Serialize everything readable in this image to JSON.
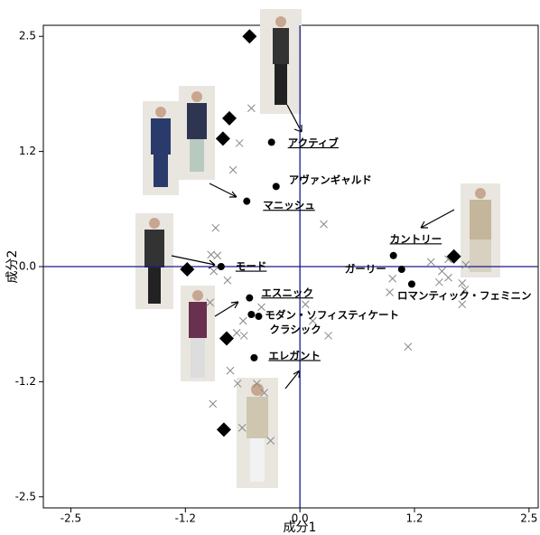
{
  "chart_data": {
    "type": "scatter",
    "x_label": "成分1",
    "y_label": "成分2",
    "xlim": [
      -2.8,
      2.6
    ],
    "ylim": [
      -2.62,
      2.62
    ],
    "xticks": [
      -2.5,
      {
        "value": -1.25,
        "label": "-1.2"
      },
      {
        "value": 0,
        "label": "0.0"
      },
      {
        "value": 1.25,
        "label": "1.2"
      },
      2.5
    ],
    "yticks": [
      2.5,
      {
        "value": 1.25,
        "label": "1.2"
      },
      {
        "value": 0,
        "label": "0.0"
      },
      {
        "value": -1.25,
        "label": "-1.2"
      },
      -2.5
    ],
    "axis_line_color": "#1a1a8c",
    "series": [
      {
        "marker": "x",
        "color": "#888888",
        "x": [
          -0.53,
          -0.66,
          -0.73,
          0.26,
          -0.92,
          -0.97,
          -0.9,
          -0.94,
          -0.79,
          -0.98,
          -0.42,
          -0.62,
          -0.69,
          -0.61,
          0.31,
          0.06,
          0.14,
          -0.76,
          -0.47,
          -0.68,
          -0.95,
          -0.39,
          -0.63,
          -0.32,
          1.18,
          1.01,
          0.98,
          1.43,
          1.55,
          1.62,
          1.52,
          1.77,
          1.8,
          1.77,
          1.62,
          1.81
        ],
        "values": [
          1.72,
          1.34,
          1.05,
          0.46,
          0.42,
          0.13,
          0.12,
          -0.05,
          -0.15,
          -0.39,
          -0.44,
          -0.59,
          -0.72,
          -0.75,
          -0.75,
          -0.41,
          -0.59,
          -1.13,
          -1.27,
          -1.27,
          -1.49,
          -1.37,
          -1.75,
          -1.89,
          -0.87,
          -0.13,
          -0.28,
          0.05,
          -0.05,
          -0.12,
          -0.17,
          -0.18,
          -0.25,
          -0.41,
          0.08,
          0.02
        ]
      },
      {
        "marker": "diamond",
        "color": "#000000",
        "x": [
          -0.55,
          -0.77,
          -0.84,
          -1.23,
          -0.8,
          -0.83,
          1.68
        ],
        "values": [
          2.5,
          1.61,
          1.39,
          -0.03,
          -0.78,
          -1.77,
          0.11
        ]
      },
      {
        "marker": "circle",
        "color": "#000000",
        "x": [
          -0.31,
          -0.26,
          -0.58,
          -0.86,
          1.02,
          1.11,
          1.22,
          -0.55,
          -0.53,
          -0.45,
          -0.5
        ],
        "values": [
          1.35,
          0.87,
          0.71,
          0,
          0.12,
          -0.03,
          -0.19,
          -0.34,
          -0.52,
          -0.54,
          -0.99
        ],
        "labels": [
          "アクティブ",
          "アヴァンギャルド",
          "マニッシュ",
          "モード",
          "カントリー",
          "ガーリー",
          "ロマンティック・フェミニン",
          "エスニック",
          "モダン・ソフィスティケート",
          "クラシック",
          "エレガント"
        ],
        "underlined": [
          true,
          false,
          true,
          true,
          true,
          false,
          false,
          true,
          false,
          false,
          true
        ]
      }
    ]
  }
}
